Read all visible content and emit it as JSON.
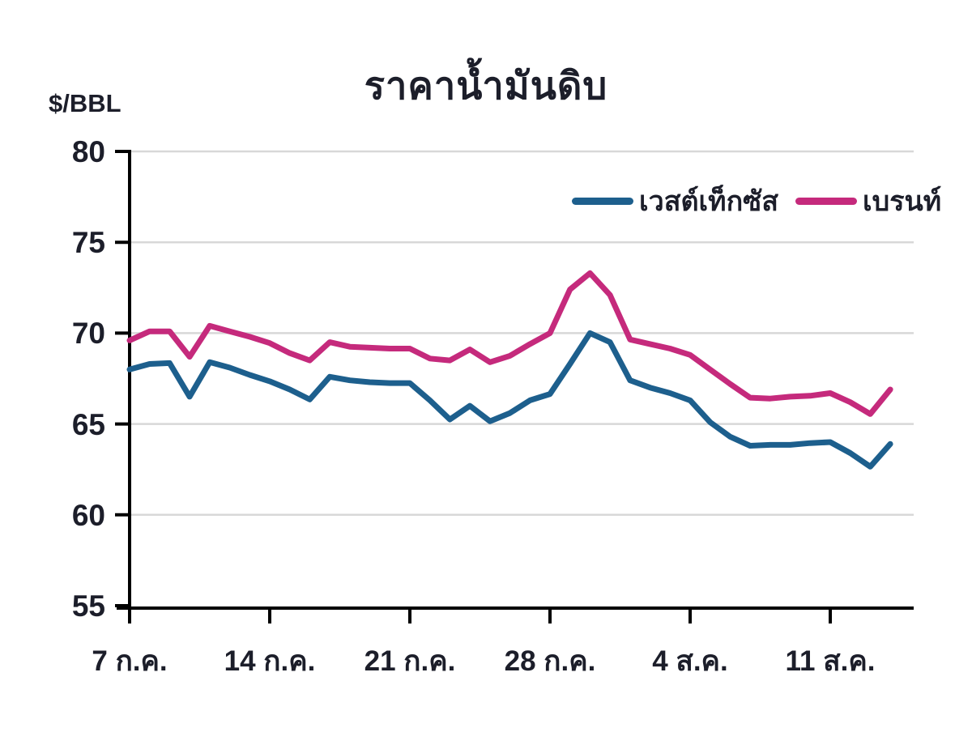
{
  "title": "ราคาน้ำมันดิบ",
  "y_axis_unit": "$/BBL",
  "colors": {
    "west_texas": "#1d5f8d",
    "brent": "#c52a7c",
    "grid": "#d8d8d8",
    "axis": "#000000",
    "text": "#1c1e2a"
  },
  "legend": [
    {
      "label": "เวสต์เท็กซัส",
      "color": "#1d5f8d"
    },
    {
      "label": "เบรนท์",
      "color": "#c52a7c"
    }
  ],
  "chart_data": {
    "type": "line",
    "title": "ราคาน้ำมันดิบ",
    "ylabel": "$/BBL",
    "ylim": [
      55,
      80
    ],
    "yticks": [
      "80",
      "75",
      "70",
      "65",
      "60",
      "55"
    ],
    "ytick_values": [
      80,
      75,
      70,
      65,
      60,
      55
    ],
    "grid": "horizontal",
    "legend_position": "top-right",
    "x_tick_labels": [
      "7 ก.ค.",
      "14 ก.ค.",
      "21 ก.ค.",
      "28 ก.ค.",
      "4 ส.ค.",
      "11 ส.ค."
    ],
    "x_tick_days": [
      0,
      7,
      14,
      21,
      28,
      35
    ],
    "x_unit": "day",
    "n_points": 39,
    "series": [
      {
        "name": "เวสต์เท็กซัส",
        "color": "#1d5f8d",
        "values": [
          68.0,
          68.3,
          68.35,
          66.5,
          68.4,
          68.1,
          67.7,
          67.35,
          66.9,
          66.35,
          67.6,
          67.4,
          67.3,
          67.25,
          67.25,
          66.3,
          65.25,
          66.0,
          65.15,
          65.6,
          66.3,
          66.65,
          68.3,
          70.0,
          69.5,
          67.4,
          67.0,
          66.7,
          66.3,
          65.1,
          64.3,
          63.8,
          63.85,
          63.85,
          63.95,
          64.0,
          63.4,
          62.65,
          63.9
        ]
      },
      {
        "name": "เบรนท์",
        "color": "#c52a7c",
        "values": [
          69.6,
          70.1,
          70.1,
          68.7,
          70.4,
          70.1,
          69.8,
          69.45,
          68.9,
          68.5,
          69.5,
          69.25,
          69.2,
          69.15,
          69.15,
          68.6,
          68.5,
          69.1,
          68.4,
          68.75,
          69.4,
          70.0,
          72.4,
          73.3,
          72.1,
          69.65,
          69.4,
          69.15,
          68.8,
          68.0,
          67.2,
          66.45,
          66.4,
          66.5,
          66.55,
          66.7,
          66.2,
          65.55,
          66.9
        ]
      }
    ]
  }
}
